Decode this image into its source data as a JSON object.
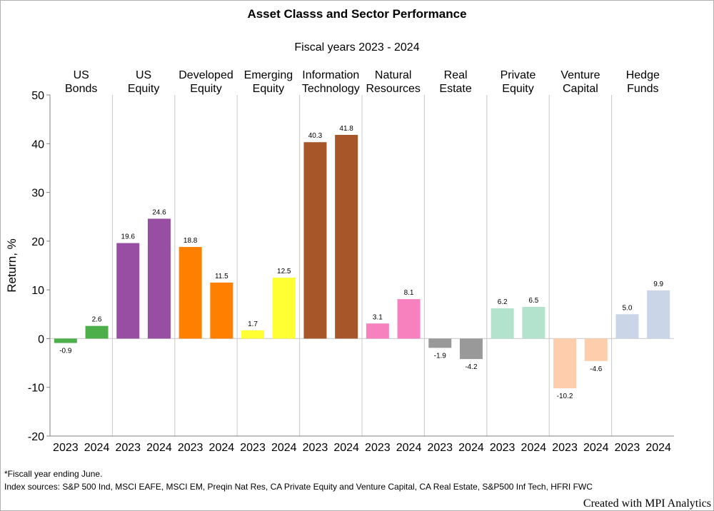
{
  "chart_data": {
    "type": "bar",
    "title": "Asset Classs and Sector Performance",
    "subtitle": "Fiscal years 2023 - 2024",
    "ylabel": "Return, %",
    "ylim": [
      -20,
      50
    ],
    "yticks": [
      50,
      40,
      30,
      20,
      10,
      0,
      -10,
      -20
    ],
    "grid": false,
    "years": [
      "2023",
      "2024"
    ],
    "groups": [
      {
        "label_lines": [
          "US",
          "Bonds"
        ],
        "color": "#4daf4a",
        "values": [
          -0.9,
          2.6
        ]
      },
      {
        "label_lines": [
          "US",
          "Equity"
        ],
        "color": "#984ea3",
        "values": [
          19.6,
          24.6
        ]
      },
      {
        "label_lines": [
          "Developed",
          "Equity"
        ],
        "color": "#ff7f00",
        "values": [
          18.8,
          11.5
        ]
      },
      {
        "label_lines": [
          "Emerging",
          "Equity"
        ],
        "color": "#ffff33",
        "values": [
          1.7,
          12.5
        ]
      },
      {
        "label_lines": [
          "Information",
          "Technology"
        ],
        "color": "#a65628",
        "values": [
          40.3,
          41.8
        ]
      },
      {
        "label_lines": [
          "Natural",
          "Resources"
        ],
        "color": "#f781bf",
        "values": [
          3.1,
          8.1
        ]
      },
      {
        "label_lines": [
          "Real",
          "Estate"
        ],
        "color": "#999999",
        "values": [
          -1.9,
          -4.2
        ]
      },
      {
        "label_lines": [
          "Private",
          "Equity"
        ],
        "color": "#b3e2cd",
        "values": [
          6.2,
          6.5
        ]
      },
      {
        "label_lines": [
          "Venture",
          "Capital"
        ],
        "color": "#fdcdac",
        "values": [
          -10.2,
          -4.6
        ]
      },
      {
        "label_lines": [
          "Hedge",
          "Funds"
        ],
        "color": "#cbd5e8",
        "values": [
          5.0,
          9.9
        ]
      }
    ],
    "value_labels": [
      [
        "-0.9",
        "2.6"
      ],
      [
        "19.6",
        "24.6"
      ],
      [
        "18.8",
        "11.5"
      ],
      [
        "1.7",
        "12.5"
      ],
      [
        "40.3",
        "41.8"
      ],
      [
        "3.1",
        "8.1"
      ],
      [
        "-1.9",
        "-4.2"
      ],
      [
        "6.2",
        "6.5"
      ],
      [
        "-10.2",
        "-4.6"
      ],
      [
        "5.0",
        "9.9"
      ]
    ]
  },
  "footnotes": {
    "line1": "*Fiscall year ending June.",
    "line2": "Index sources: S&P 500 Ind, MSCI EAFE, MSCI EM, Preqin Nat Res, CA Private Equity and Venture Capital, CA Real Estate, S&P500 Inf Tech, HFRI FWC"
  },
  "credit": "Created with MPI Analytics"
}
